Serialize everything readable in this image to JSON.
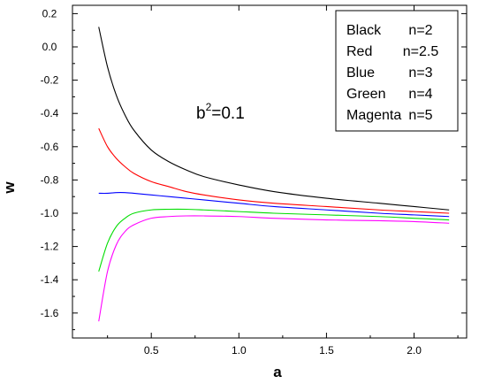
{
  "chart_data": {
    "type": "line",
    "xlabel": "a",
    "ylabel": "w",
    "xlim": [
      0.05,
      2.3
    ],
    "ylim": [
      -1.75,
      0.25
    ],
    "x_ticks": [
      0.5,
      1.0,
      1.5,
      2.0
    ],
    "x_tick_labels": [
      "0.5",
      "1.0",
      "1.5",
      "2.0"
    ],
    "y_ticks": [
      0.2,
      0.0,
      -0.2,
      -0.4,
      -0.6,
      -0.8,
      -1.0,
      -1.2,
      -1.4,
      -1.6
    ],
    "y_tick_labels": [
      "0.2",
      "0.0",
      "-0.2",
      "-0.4",
      "-0.6",
      "-0.8",
      "-1.0",
      "-1.2",
      "-1.4",
      "-1.6"
    ],
    "grid": false,
    "legend_placement": "top-right",
    "legend": [
      {
        "label": "Black",
        "value": "n=2",
        "color": "#000000"
      },
      {
        "label": "Red",
        "value": "n=2.5",
        "color": "#ff0000"
      },
      {
        "label": "Blue",
        "value": "n=3",
        "color": "#0000ff"
      },
      {
        "label": "Green",
        "value": "n=4",
        "color": "#00dd00"
      },
      {
        "label": "Magenta",
        "value": "n=5",
        "color": "#ff00ff"
      }
    ],
    "annotation": {
      "base": "b",
      "sup": "2",
      "rest": "=0.1"
    },
    "x": [
      0.2,
      0.25,
      0.3,
      0.35,
      0.4,
      0.5,
      0.6,
      0.7,
      0.8,
      1.0,
      1.2,
      1.5,
      1.8,
      2.0,
      2.2
    ],
    "series": [
      {
        "color": "#000000",
        "values": [
          0.12,
          -0.12,
          -0.29,
          -0.41,
          -0.5,
          -0.62,
          -0.69,
          -0.74,
          -0.78,
          -0.83,
          -0.87,
          -0.91,
          -0.94,
          -0.96,
          -0.98
        ]
      },
      {
        "color": "#ff0000",
        "values": [
          -0.49,
          -0.6,
          -0.67,
          -0.72,
          -0.76,
          -0.81,
          -0.84,
          -0.87,
          -0.89,
          -0.92,
          -0.94,
          -0.96,
          -0.98,
          -0.99,
          -1.0
        ]
      },
      {
        "color": "#0000ff",
        "values": [
          -0.88,
          -0.88,
          -0.876,
          -0.876,
          -0.88,
          -0.89,
          -0.9,
          -0.91,
          -0.92,
          -0.94,
          -0.96,
          -0.98,
          -1.0,
          -1.01,
          -1.02
        ]
      },
      {
        "color": "#00dd00",
        "values": [
          -1.35,
          -1.18,
          -1.08,
          -1.03,
          -1.0,
          -0.98,
          -0.976,
          -0.976,
          -0.98,
          -0.99,
          -1.0,
          -1.01,
          -1.02,
          -1.03,
          -1.04
        ]
      },
      {
        "color": "#ff00ff",
        "values": [
          -1.65,
          -1.35,
          -1.19,
          -1.11,
          -1.07,
          -1.03,
          -1.02,
          -1.016,
          -1.016,
          -1.02,
          -1.03,
          -1.04,
          -1.045,
          -1.05,
          -1.06
        ]
      }
    ]
  }
}
